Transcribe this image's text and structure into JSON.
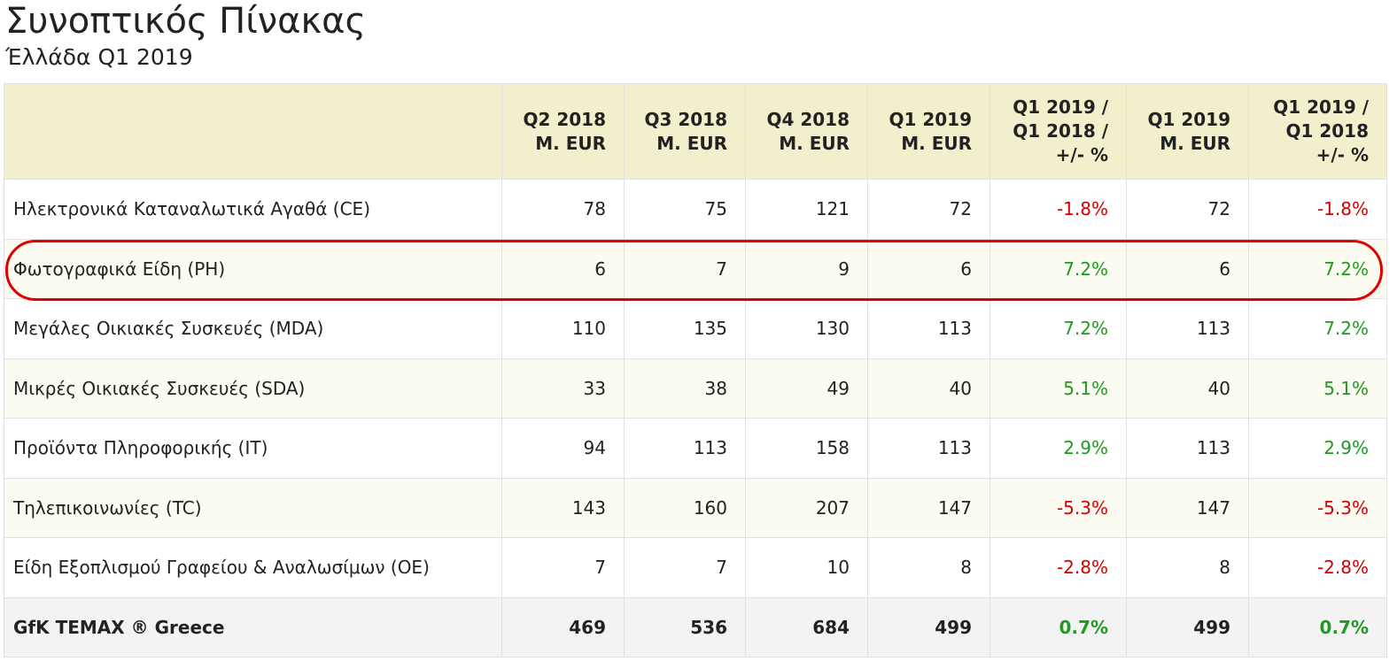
{
  "title": "Συνοπτικός Πίνακας",
  "subtitle": "Έλλάδα Q1 2019",
  "colors": {
    "header_bg": "#f2f0cc",
    "negative": "#d40000",
    "positive": "#1e9a1e",
    "highlight": "#e00000"
  },
  "columns": [
    {
      "lines": [
        ""
      ]
    },
    {
      "lines": [
        "Q2 2018",
        "M. EUR"
      ]
    },
    {
      "lines": [
        "Q3 2018",
        "M. EUR"
      ]
    },
    {
      "lines": [
        "Q4 2018",
        "M. EUR"
      ]
    },
    {
      "lines": [
        "Q1 2019",
        "M. EUR"
      ]
    },
    {
      "lines": [
        "Q1 2019 /",
        "Q1 2018 /",
        "+/- %"
      ]
    },
    {
      "lines": [
        "Q1 2019",
        "M. EUR"
      ]
    },
    {
      "lines": [
        "Q1 2019 /",
        "Q1 2018",
        "+/- %"
      ]
    }
  ],
  "rows": [
    {
      "label": "Ηλεκτρονικά Καταναλωτικά Αγαθά (CE)",
      "q2_2018": "78",
      "q3_2018": "75",
      "q4_2018": "121",
      "q1_2019": "72",
      "change": "-1.8%",
      "q1_2019b": "72",
      "change_b": "-1.8%",
      "trend": "neg",
      "highlighted": false
    },
    {
      "label": "Φωτογραφικά Είδη (PH)",
      "q2_2018": "6",
      "q3_2018": "7",
      "q4_2018": "9",
      "q1_2019": "6",
      "change": "7.2%",
      "q1_2019b": "6",
      "change_b": "7.2%",
      "trend": "pos",
      "highlighted": true
    },
    {
      "label": "Μεγάλες Οικιακές Συσκευές (MDA)",
      "q2_2018": "110",
      "q3_2018": "135",
      "q4_2018": "130",
      "q1_2019": "113",
      "change": "7.2%",
      "q1_2019b": "113",
      "change_b": "7.2%",
      "trend": "pos",
      "highlighted": false
    },
    {
      "label": "Μικρές Οικιακές Συσκευές (SDA)",
      "q2_2018": "33",
      "q3_2018": "38",
      "q4_2018": "49",
      "q1_2019": "40",
      "change": "5.1%",
      "q1_2019b": "40",
      "change_b": "5.1%",
      "trend": "pos",
      "highlighted": false
    },
    {
      "label": "Προϊόντα Πληροφορικής (IT)",
      "q2_2018": "94",
      "q3_2018": "113",
      "q4_2018": "158",
      "q1_2019": "113",
      "change": "2.9%",
      "q1_2019b": "113",
      "change_b": "2.9%",
      "trend": "pos",
      "highlighted": false
    },
    {
      "label": "Τηλεπικοινωνίες (TC)",
      "q2_2018": "143",
      "q3_2018": "160",
      "q4_2018": "207",
      "q1_2019": "147",
      "change": "-5.3%",
      "q1_2019b": "147",
      "change_b": "-5.3%",
      "trend": "neg",
      "highlighted": false
    },
    {
      "label": "Είδη Εξοπλισμού Γραφείου & Αναλωσίμων (OE)",
      "q2_2018": "7",
      "q3_2018": "7",
      "q4_2018": "10",
      "q1_2019": "8",
      "change": "-2.8%",
      "q1_2019b": "8",
      "change_b": "-2.8%",
      "trend": "neg",
      "highlighted": false
    }
  ],
  "total": {
    "label": "GfK TEMAX ® Greece",
    "q2_2018": "469",
    "q3_2018": "536",
    "q4_2018": "684",
    "q1_2019": "499",
    "change": "0.7%",
    "q1_2019b": "499",
    "change_b": "0.7%",
    "trend": "pos"
  }
}
